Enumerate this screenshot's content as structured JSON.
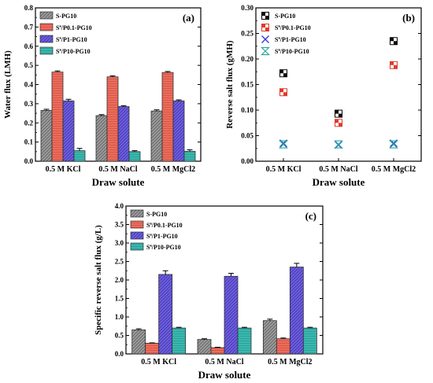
{
  "chart_data": [
    {
      "type": "bar",
      "panel_label": "(a)",
      "categories": [
        "0.5 M KCl",
        "0.5 M NaCl",
        "0.5 M MgCl2"
      ],
      "xlabel": "Draw solute",
      "ylabel": "Water flux (LMH)",
      "ylim": [
        0,
        0.8
      ],
      "yticks": [
        "0.0",
        "0.1",
        "0.2",
        "0.3",
        "0.4",
        "0.5",
        "0.6",
        "0.7",
        "0.8"
      ],
      "legend_position": "top-left",
      "series": [
        {
          "name": "S-PG10",
          "values": [
            0.265,
            0.238,
            0.262
          ],
          "errors": [
            0.006,
            0.005,
            0.006
          ],
          "color": "#9a9a9a",
          "pattern": "diag"
        },
        {
          "name": "S^s/P0.1-PG10",
          "values": [
            0.465,
            0.44,
            0.463
          ],
          "errors": [
            0.006,
            0.005,
            0.005
          ],
          "color": "#f06a5a",
          "pattern": "horiz"
        },
        {
          "name": "S^s/P1-PG10",
          "values": [
            0.315,
            0.285,
            0.315
          ],
          "errors": [
            0.008,
            0.005,
            0.005
          ],
          "color": "#6c5ce8",
          "pattern": "diag"
        },
        {
          "name": "S^s/P10-PG10",
          "values": [
            0.055,
            0.05,
            0.052
          ],
          "errors": [
            0.012,
            0.005,
            0.008
          ],
          "color": "#38b9b0",
          "pattern": "horiz"
        }
      ]
    },
    {
      "type": "scatter",
      "panel_label": "(b)",
      "categories": [
        "0.5 M KCl",
        "0.5 M NaCl",
        "0.5 M MgCl2"
      ],
      "xlabel": "Draw solute",
      "ylabel": "Reverse salt flux (gMH)",
      "ylim": [
        0,
        0.3
      ],
      "yticks": [
        "0.00",
        "0.05",
        "0.10",
        "0.15",
        "0.20",
        "0.25",
        "0.30"
      ],
      "legend_position": "top-left",
      "series": [
        {
          "name": "S-PG10",
          "values": [
            0.172,
            0.093,
            0.235
          ],
          "color": "#000000",
          "marker": "checker"
        },
        {
          "name": "S^s/P0.1-PG10",
          "values": [
            0.135,
            0.075,
            0.188
          ],
          "color": "#e0392b",
          "marker": "checker"
        },
        {
          "name": "S^s/P1-PG10",
          "values": [
            0.035,
            0.032,
            0.035
          ],
          "color": "#3535e0",
          "marker": "x"
        },
        {
          "name": "S^s/P10-PG10",
          "values": [
            0.033,
            0.033,
            0.033
          ],
          "color": "#2aa8a0",
          "marker": "hourglass"
        }
      ]
    },
    {
      "type": "bar",
      "panel_label": "(c)",
      "categories": [
        "0.5 M KCl",
        "0.5 M NaCl",
        "0.5 M MgCl2"
      ],
      "xlabel": "Draw solute",
      "ylabel": "Specific reverse salt flux (g/L)",
      "ylim": [
        0,
        4.0
      ],
      "yticks": [
        "0.0",
        "0.5",
        "1.0",
        "1.5",
        "2.0",
        "2.5",
        "3.0",
        "3.5",
        "4.0"
      ],
      "legend_position": "top-left",
      "series": [
        {
          "name": "S-PG10",
          "values": [
            0.65,
            0.39,
            0.9
          ],
          "errors": [
            0.03,
            0.02,
            0.04
          ],
          "color": "#9a9a9a",
          "pattern": "diag"
        },
        {
          "name": "S^s/P0.1-PG10",
          "values": [
            0.29,
            0.17,
            0.41
          ],
          "errors": [
            0.01,
            0.01,
            0.02
          ],
          "color": "#f06a5a",
          "pattern": "horiz"
        },
        {
          "name": "S^s/P1-PG10",
          "values": [
            2.15,
            2.1,
            2.35
          ],
          "errors": [
            0.1,
            0.08,
            0.1
          ],
          "color": "#6c5ce8",
          "pattern": "diag"
        },
        {
          "name": "S^s/P10-PG10",
          "values": [
            0.7,
            0.7,
            0.7
          ],
          "errors": [
            0.02,
            0.02,
            0.02
          ],
          "color": "#38b9b0",
          "pattern": "horiz"
        }
      ]
    }
  ]
}
